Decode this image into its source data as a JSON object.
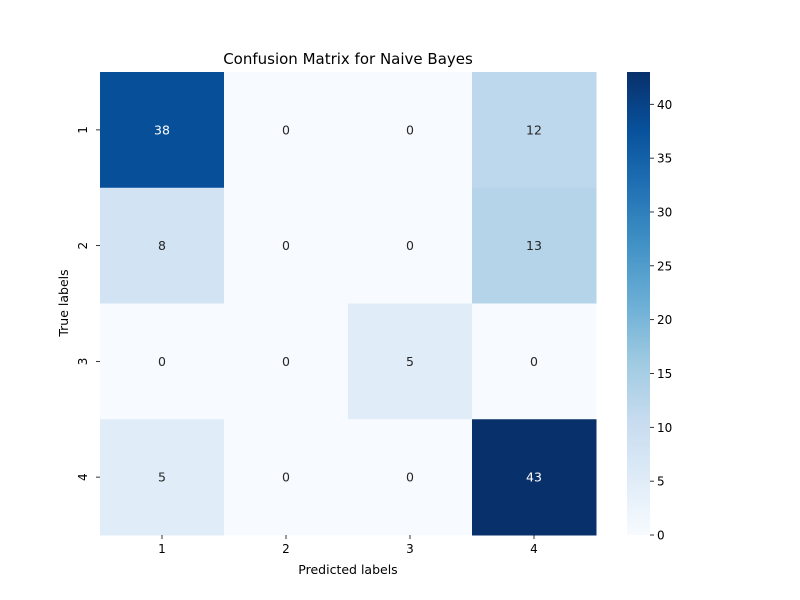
{
  "chart_data": {
    "type": "heatmap",
    "title": "Confusion Matrix for Naive Bayes",
    "xlabel": "Predicted labels",
    "ylabel": "True labels",
    "x_categories": [
      "1",
      "2",
      "3",
      "4"
    ],
    "y_categories": [
      "1",
      "2",
      "3",
      "4"
    ],
    "values": [
      [
        38,
        0,
        0,
        12
      ],
      [
        8,
        0,
        0,
        13
      ],
      [
        0,
        0,
        5,
        0
      ],
      [
        5,
        0,
        0,
        43
      ]
    ],
    "colormap": "Blues",
    "colorbar": {
      "range": [
        0,
        43
      ],
      "ticks": [
        "0",
        "5",
        "10",
        "15",
        "20",
        "25",
        "30",
        "35",
        "40"
      ]
    },
    "grid": false
  }
}
